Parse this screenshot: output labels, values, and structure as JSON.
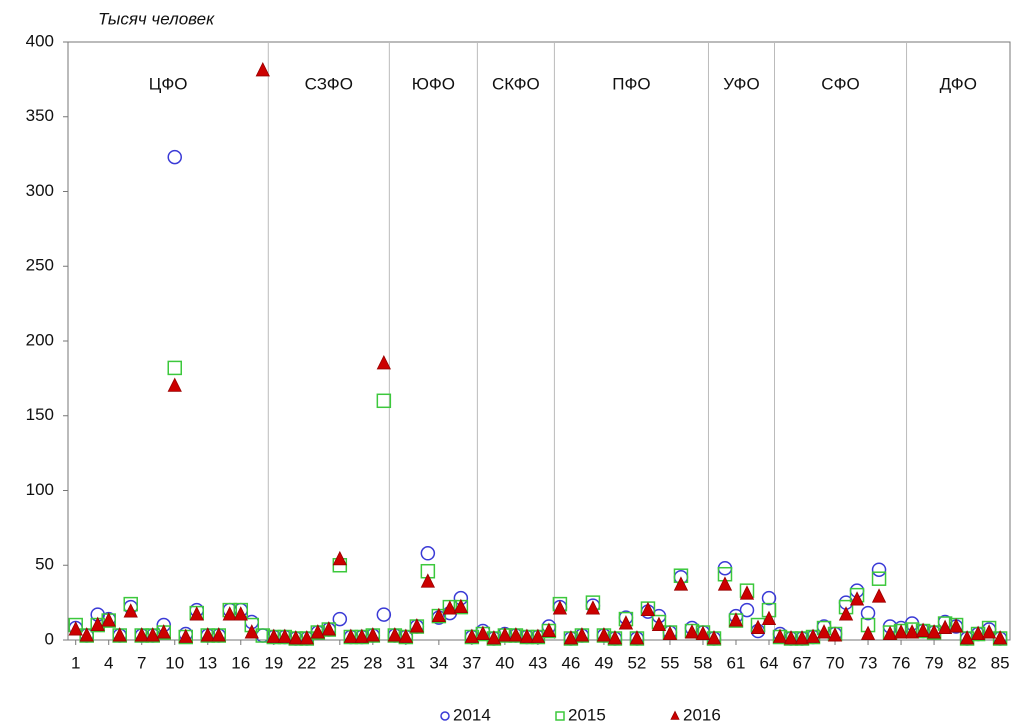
{
  "chart_data": {
    "type": "scatter",
    "y_label": "Тысяч человек",
    "x": [
      1,
      2,
      3,
      4,
      5,
      6,
      7,
      8,
      9,
      10,
      11,
      12,
      13,
      14,
      15,
      16,
      17,
      18,
      19,
      20,
      21,
      22,
      23,
      24,
      25,
      26,
      27,
      28,
      29,
      30,
      31,
      32,
      33,
      34,
      35,
      36,
      37,
      38,
      39,
      40,
      41,
      42,
      43,
      44,
      45,
      46,
      47,
      48,
      49,
      50,
      51,
      52,
      53,
      54,
      55,
      56,
      57,
      58,
      59,
      60,
      61,
      62,
      63,
      64,
      65,
      66,
      67,
      68,
      69,
      70,
      71,
      72,
      73,
      74,
      75,
      76,
      77,
      78,
      79,
      80,
      81,
      82,
      83,
      84,
      85
    ],
    "series": [
      {
        "name": "2014",
        "marker": "circle",
        "color": "#3a3ad6",
        "values": [
          8,
          3,
          17,
          14,
          3,
          22,
          3,
          3,
          10,
          323,
          4,
          20,
          3,
          3,
          20,
          20,
          12,
          3,
          2,
          2,
          1,
          1,
          5,
          7,
          14,
          2,
          2,
          3,
          17,
          3,
          2,
          9,
          58,
          15,
          18,
          28,
          2,
          6,
          1,
          4,
          3,
          2,
          2,
          9,
          22,
          1,
          3,
          23,
          3,
          1,
          15,
          1,
          19,
          16,
          5,
          42,
          8,
          5,
          1,
          48,
          16,
          20,
          6,
          28,
          4,
          1,
          1,
          2,
          9,
          4,
          25,
          33,
          18,
          47,
          9,
          8,
          11,
          6,
          5,
          12,
          9,
          1,
          4,
          7,
          1
        ]
      },
      {
        "name": "2015",
        "marker": "square",
        "color": "#3cc83c",
        "values": [
          10,
          3,
          10,
          13,
          3,
          24,
          3,
          3,
          5,
          182,
          2,
          18,
          3,
          3,
          20,
          20,
          10,
          3,
          2,
          2,
          1,
          1,
          5,
          7,
          50,
          2,
          2,
          3,
          160,
          3,
          2,
          9,
          46,
          16,
          22,
          22,
          2,
          4,
          1,
          3,
          3,
          2,
          2,
          6,
          24,
          1,
          3,
          25,
          3,
          1,
          14,
          1,
          21,
          12,
          5,
          43,
          6,
          5,
          1,
          44,
          13,
          33,
          10,
          20,
          2,
          1,
          1,
          2,
          8,
          4,
          22,
          30,
          10,
          41,
          5,
          6,
          7,
          6,
          5,
          11,
          10,
          1,
          4,
          8,
          1
        ]
      },
      {
        "name": "2016",
        "marker": "triangle",
        "color": "#cc0000",
        "values": [
          7,
          3,
          10,
          13,
          3,
          19,
          3,
          3,
          5,
          170,
          2,
          17,
          3,
          3,
          17,
          17,
          5,
          381,
          2,
          2,
          1,
          1,
          5,
          7,
          54,
          2,
          2,
          3,
          185,
          3,
          2,
          9,
          39,
          16,
          21,
          22,
          2,
          4,
          1,
          3,
          3,
          2,
          2,
          6,
          21,
          1,
          3,
          21,
          3,
          1,
          11,
          1,
          20,
          10,
          4,
          37,
          5,
          4,
          1,
          37,
          13,
          31,
          8,
          14,
          2,
          1,
          1,
          2,
          5,
          3,
          17,
          27,
          4,
          29,
          4,
          5,
          5,
          6,
          5,
          8,
          9,
          1,
          4,
          5,
          1
        ]
      }
    ],
    "xlim": [
      0.3,
      85.9
    ],
    "xticks": [
      1,
      4,
      7,
      10,
      13,
      16,
      19,
      22,
      25,
      28,
      31,
      34,
      37,
      40,
      43,
      46,
      49,
      52,
      55,
      58,
      61,
      64,
      67,
      70,
      73,
      76,
      79,
      82,
      85
    ],
    "ylim": [
      0,
      400
    ],
    "yticks": [
      0,
      50,
      100,
      150,
      200,
      250,
      300,
      350,
      400
    ],
    "district_lines": [
      18.5,
      29.5,
      37.5,
      44.5,
      58.5,
      64.5,
      76.5
    ],
    "districts": [
      "ЦФО",
      "СЗФО",
      "ЮФО",
      "СКФО",
      "ПФО",
      "УФО",
      "СФО",
      "ДФО"
    ],
    "legend": "bottom"
  }
}
